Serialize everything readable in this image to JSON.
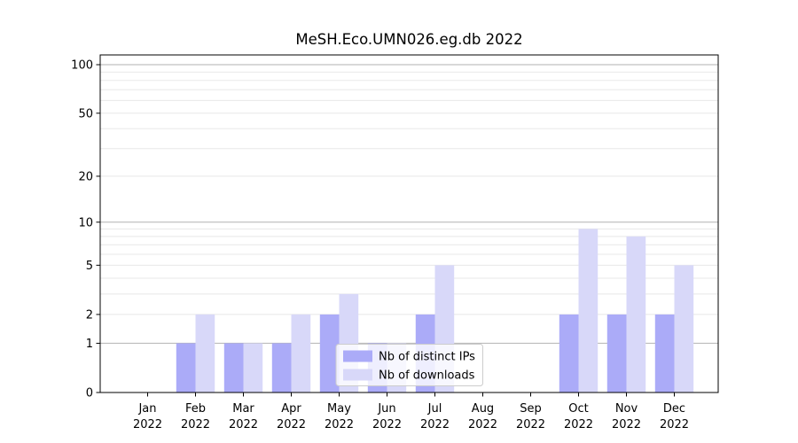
{
  "chart_data": {
    "type": "bar",
    "title": "MeSH.Eco.UMN026.eg.db 2022",
    "xlabel": "",
    "ylabel": "",
    "categories": [
      "Jan 2022",
      "Feb 2022",
      "Mar 2022",
      "Apr 2022",
      "May 2022",
      "Jun 2022",
      "Jul 2022",
      "Aug 2022",
      "Sep 2022",
      "Oct 2022",
      "Nov 2022",
      "Dec 2022"
    ],
    "series": [
      {
        "name": "Nb of distinct IPs",
        "color": "#ababf8",
        "values": [
          0,
          1,
          1,
          1,
          2,
          1,
          2,
          0,
          0,
          2,
          2,
          2
        ]
      },
      {
        "name": "Nb of downloads",
        "color": "#d8d8f9",
        "values": [
          0,
          2,
          1,
          2,
          3,
          1,
          5,
          0,
          0,
          9,
          8,
          5
        ]
      }
    ],
    "yscale": "log1p",
    "ylim": [
      0,
      115
    ],
    "yticks": [
      0,
      1,
      2,
      5,
      10,
      20,
      50,
      100
    ],
    "y_major_gridlines": [
      1,
      10,
      100
    ],
    "y_minor_gridlines": [
      2,
      3,
      4,
      5,
      6,
      7,
      8,
      9,
      20,
      30,
      40,
      50,
      60,
      70,
      80,
      90
    ],
    "grid": true,
    "legend_position": "lower center-right, inside axes"
  },
  "style": {
    "background": "#ffffff",
    "spine_color": "#000000",
    "major_grid_color": "#b2b2b2",
    "minor_grid_color": "#e8e8e8",
    "legend_border_color": "#cccccc",
    "legend_background": "rgba(255,255,255,0.8)",
    "text_color": "#000000"
  }
}
